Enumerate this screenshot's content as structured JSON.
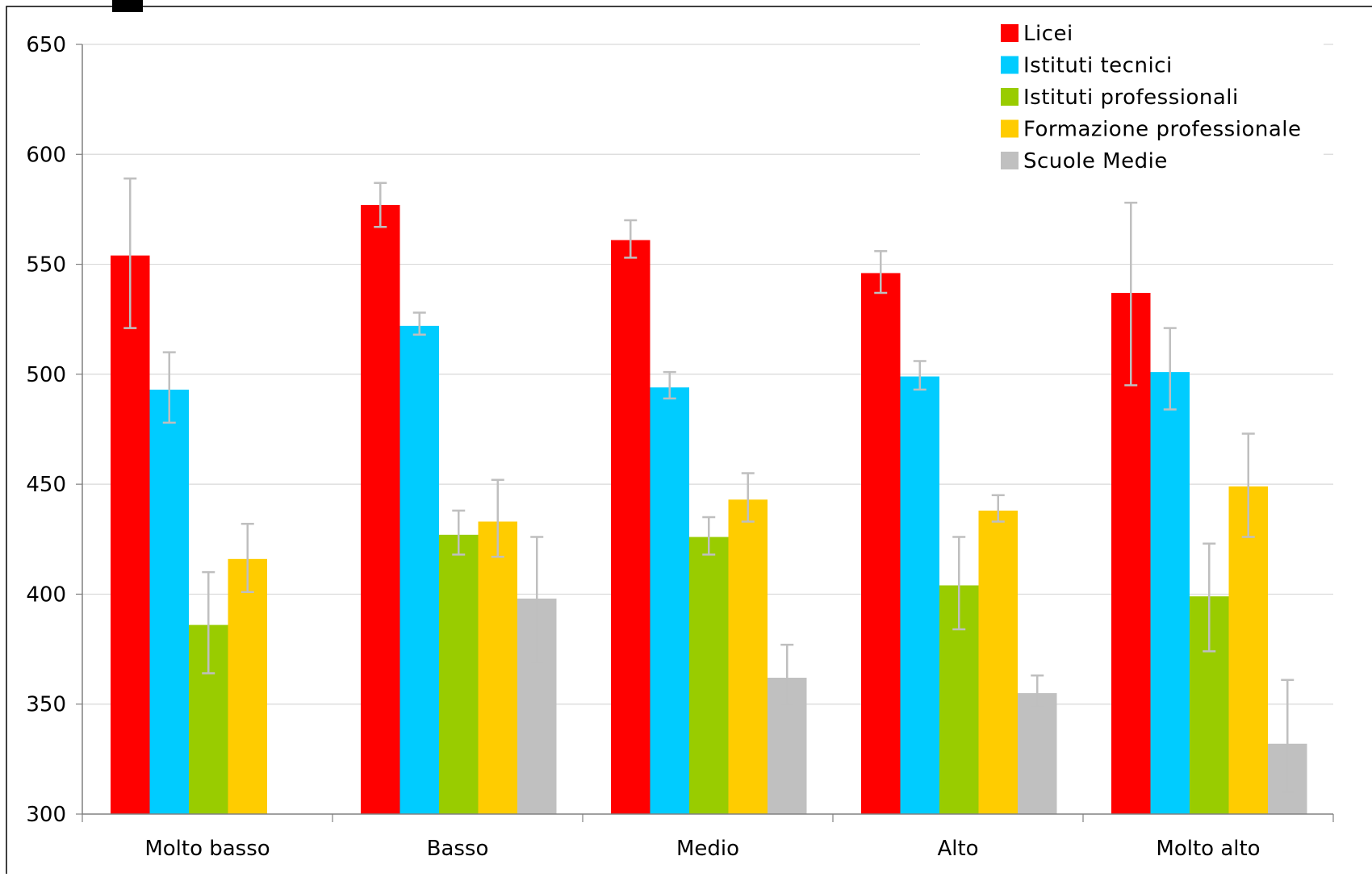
{
  "chart_data": {
    "type": "bar",
    "title": "",
    "xlabel": "",
    "ylabel": "",
    "ylim": [
      300,
      650
    ],
    "yticks": [
      300,
      350,
      400,
      450,
      500,
      550,
      600,
      650
    ],
    "categories": [
      "Molto basso",
      "Basso",
      "Medio",
      "Alto",
      "Molto alto"
    ],
    "legend_position": "top-right",
    "grid": true,
    "error_bars": true,
    "series": [
      {
        "name": "Licei",
        "color": "#ff0000",
        "values": [
          554,
          577,
          561,
          546,
          537
        ],
        "err_low": [
          521,
          567,
          553,
          537,
          495
        ],
        "err_high": [
          589,
          587,
          570,
          556,
          578
        ]
      },
      {
        "name": "Istituti tecnici",
        "color": "#00ccff",
        "values": [
          493,
          522,
          494,
          499,
          501
        ],
        "err_low": [
          478,
          518,
          489,
          493,
          484
        ],
        "err_high": [
          510,
          528,
          501,
          506,
          521
        ]
      },
      {
        "name": "Istituti professionali",
        "color": "#99cc00",
        "values": [
          386,
          427,
          426,
          404,
          399
        ],
        "err_low": [
          364,
          418,
          418,
          384,
          374
        ],
        "err_high": [
          410,
          438,
          435,
          426,
          423
        ]
      },
      {
        "name": "Formazione professionale",
        "color": "#ffcc00",
        "values": [
          416,
          433,
          443,
          438,
          449
        ],
        "err_low": [
          401,
          417,
          433,
          433,
          426
        ],
        "err_high": [
          432,
          452,
          455,
          445,
          473
        ]
      },
      {
        "name": "Scuole Medie",
        "color": "#c0c0c0",
        "values": [
          null,
          398,
          362,
          355,
          332
        ],
        "err_low": [
          null,
          369,
          350,
          349,
          310
        ],
        "err_high": [
          null,
          426,
          377,
          363,
          361
        ]
      }
    ],
    "colors": {
      "grid": "#d9d9d9",
      "error_bar": "#bfbfbf",
      "axis": "#808080",
      "frame": "#000000"
    }
  }
}
